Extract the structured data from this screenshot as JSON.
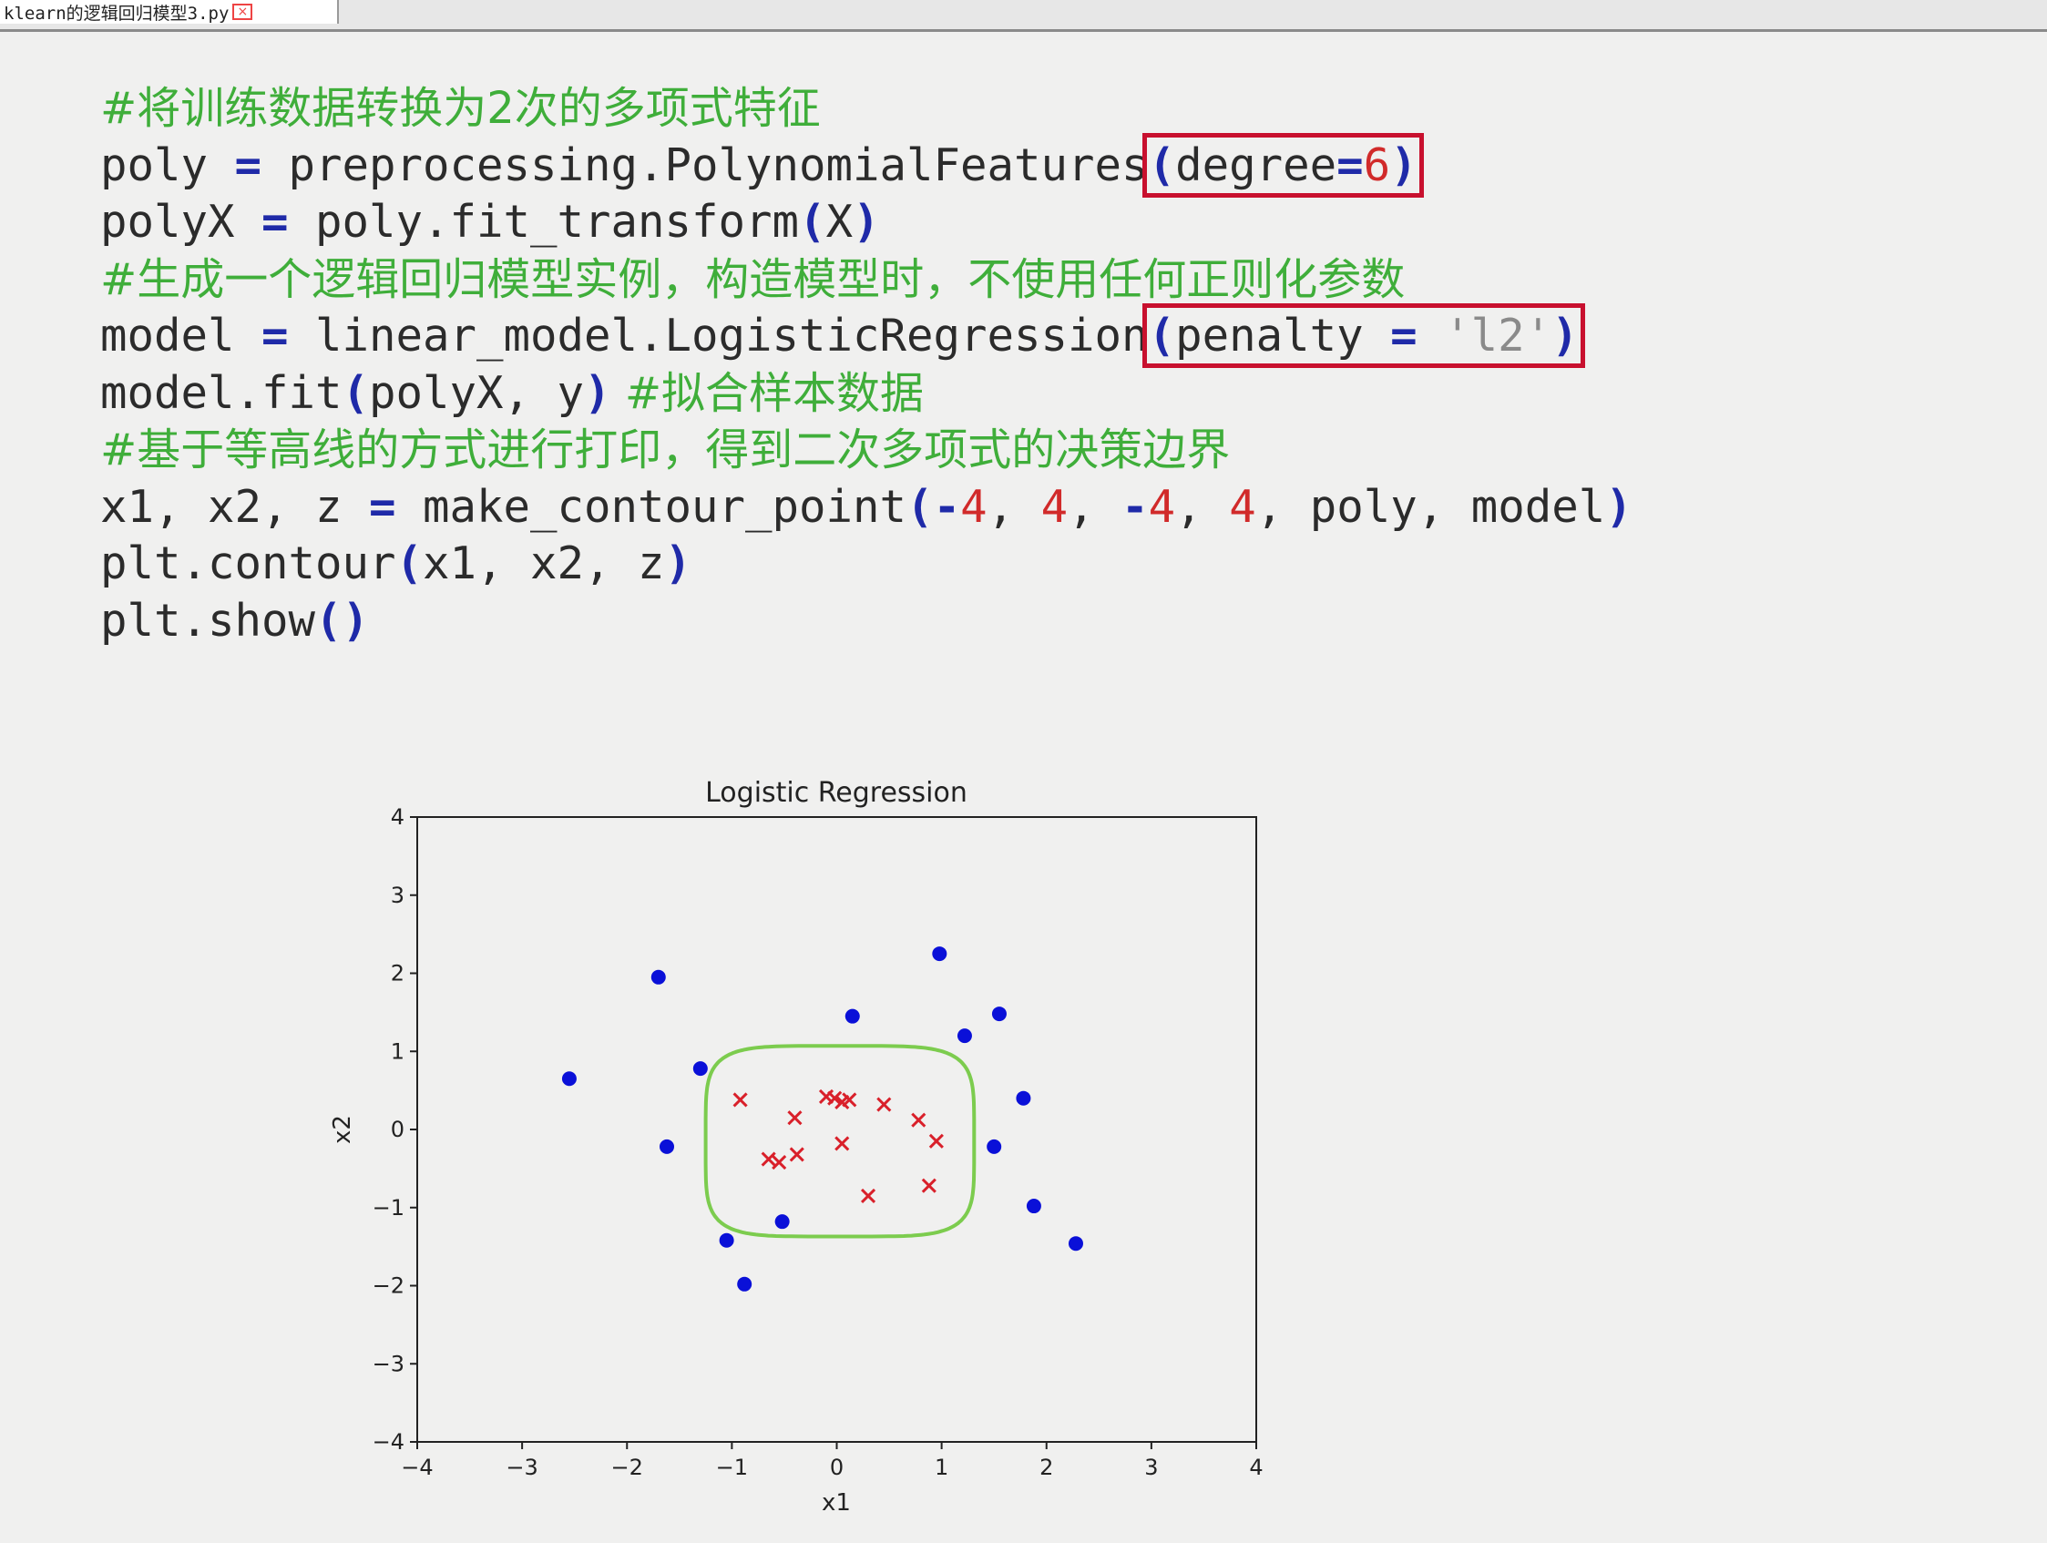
{
  "tab": {
    "label": "klearn的逻辑回归模型3.py",
    "close_glyph": "×"
  },
  "code": {
    "line1_comment": "#将训练数据转换为2次的多项式特征",
    "line2": {
      "lhs": "poly ",
      "eq": "=",
      "call": " preprocessing.PolynomialFeatures",
      "open": "(",
      "arg": "degree",
      "eq2": "=",
      "num": "6",
      "close": ")"
    },
    "line3": {
      "lhs": "polyX ",
      "eq": "=",
      "call": " poly.fit_transform",
      "open": "(",
      "arg": "X",
      "close": ")"
    },
    "line4_comment": "#生成一个逻辑回归模型实例，构造模型时，不使用任何正则化参数",
    "line5": {
      "lhs": "model ",
      "eq": "=",
      "call": " linear_model.LogisticRegression",
      "open": "(",
      "arg": "penalty ",
      "eq2": "=",
      "sp": " ",
      "str": "'l2'",
      "close": ")"
    },
    "line6": {
      "call": "model.fit",
      "open": "(",
      "args": "polyX, y",
      "close": ")",
      "comment": " #拟合样本数据"
    },
    "line7_comment": "#基于等高线的方式进行打印，得到二次多项式的决策边界",
    "line8": {
      "lhs": "x1, x2, z ",
      "eq": "=",
      "call": " make_contour_point",
      "open": "(",
      "m1": "-",
      "n1": "4",
      "c1": ", ",
      "n2": "4",
      "c2": ", ",
      "m2": "-",
      "n3": "4",
      "c3": ", ",
      "n4": "4",
      "rest": ", poly, model",
      "close": ")"
    },
    "line9": {
      "call": "plt.contour",
      "open": "(",
      "args": "x1, x2, z",
      "close": ")"
    },
    "line10": {
      "call": "plt.show",
      "open": "(",
      "close": ")"
    }
  },
  "chart_data": {
    "type": "scatter",
    "title": "Logistic Regression",
    "xlabel": "x1",
    "ylabel": "x2",
    "xlim": [
      -4,
      4
    ],
    "ylim": [
      -4,
      4
    ],
    "xticks": [
      "−4",
      "−3",
      "−2",
      "−1",
      "0",
      "1",
      "2",
      "3",
      "4"
    ],
    "yticks": [
      "−4",
      "−3",
      "−2",
      "−1",
      "0",
      "1",
      "2",
      "3",
      "4"
    ],
    "grid": false,
    "colors": {
      "negative": "#0a10d8",
      "positive": "#d9202a",
      "boundary": "#7ccc4e"
    },
    "series": [
      {
        "marker": "circle",
        "points": [
          [
            -2.55,
            0.65
          ],
          [
            -1.7,
            1.95
          ],
          [
            -1.3,
            0.78
          ],
          [
            -1.62,
            -0.22
          ],
          [
            -1.05,
            -1.42
          ],
          [
            -0.88,
            -1.98
          ],
          [
            -0.52,
            -1.18
          ],
          [
            0.15,
            1.45
          ],
          [
            0.98,
            2.25
          ],
          [
            1.22,
            1.2
          ],
          [
            1.55,
            1.48
          ],
          [
            1.78,
            0.4
          ],
          [
            1.5,
            -0.22
          ],
          [
            1.88,
            -0.98
          ],
          [
            2.28,
            -1.46
          ]
        ]
      },
      {
        "marker": "x",
        "points": [
          [
            -0.92,
            0.38
          ],
          [
            -0.65,
            -0.38
          ],
          [
            -0.55,
            -0.42
          ],
          [
            -0.4,
            0.15
          ],
          [
            -0.38,
            -0.32
          ],
          [
            -0.1,
            0.42
          ],
          [
            -0.02,
            0.4
          ],
          [
            0.05,
            0.35
          ],
          [
            0.12,
            0.38
          ],
          [
            0.05,
            -0.18
          ],
          [
            0.45,
            0.32
          ],
          [
            0.3,
            -0.85
          ],
          [
            0.78,
            0.12
          ],
          [
            0.95,
            -0.15
          ],
          [
            0.88,
            -0.72
          ]
        ]
      }
    ],
    "boundary": {
      "center": [
        0.03,
        -0.15
      ],
      "half_width": [
        1.28,
        1.22
      ],
      "exponent": 5
    }
  }
}
